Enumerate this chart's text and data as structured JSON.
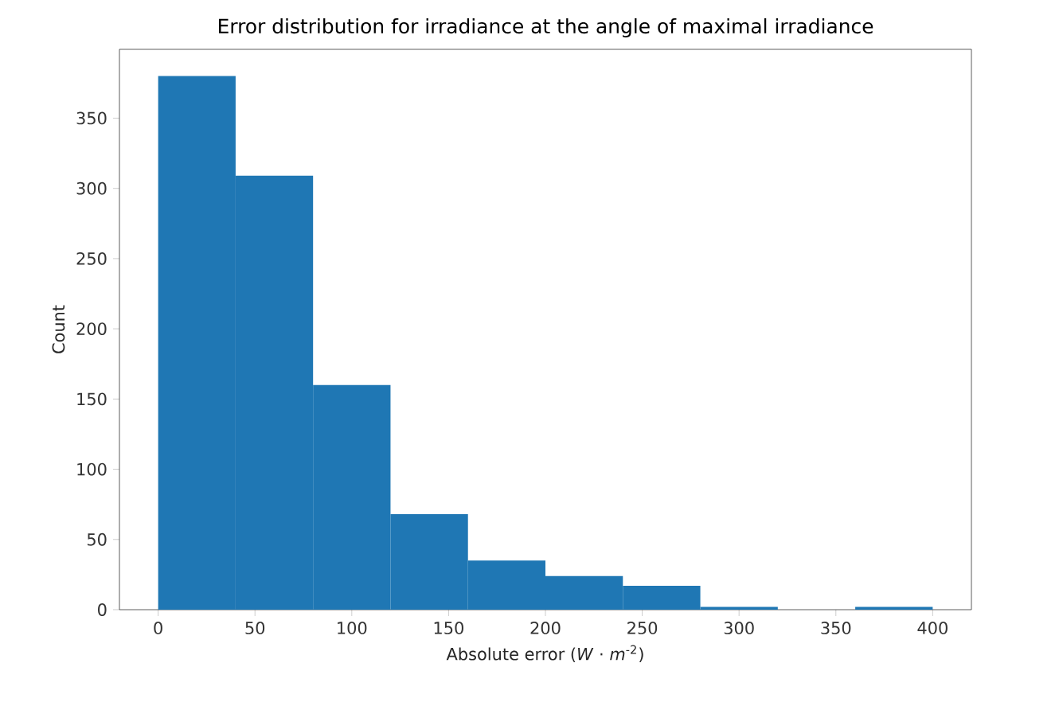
{
  "chart_data": {
    "type": "histogram",
    "title": "Error distribution for irradiance at the angle of maximal irradiance",
    "xlabel": "Absolute error (*W* · *m*$^{-2}$)",
    "ylabel": "Count",
    "bins": [
      0,
      40,
      80,
      120,
      160,
      200,
      240,
      280,
      320,
      360,
      400
    ],
    "values": [
      380,
      309,
      160,
      68,
      35,
      24,
      17,
      2,
      0,
      2
    ],
    "color": "#1f77b4",
    "xlim": [
      -20,
      420
    ],
    "ylim": [
      0,
      399
    ],
    "xticks": [
      0,
      50,
      100,
      150,
      200,
      250,
      300,
      350,
      400
    ],
    "yticks": [
      0,
      50,
      100,
      150,
      200,
      250,
      300,
      350
    ]
  }
}
